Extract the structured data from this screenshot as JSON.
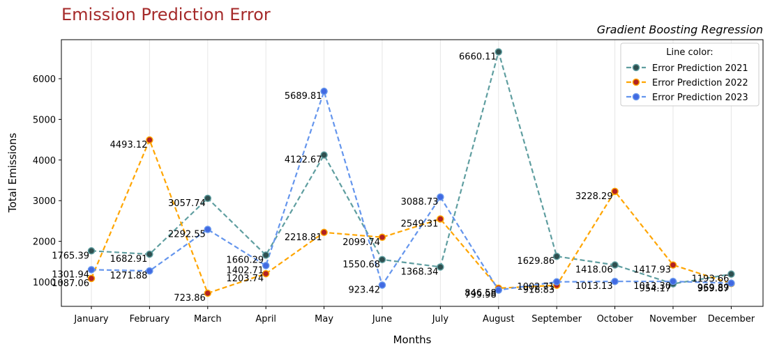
{
  "chart_data": {
    "type": "line",
    "title": "Emission Prediction Error",
    "subtitle": "Gradient Boosting Regression",
    "xlabel": "Months",
    "ylabel": "Total Emissions",
    "categories": [
      "January",
      "February",
      "March",
      "April",
      "May",
      "June",
      "July",
      "August",
      "September",
      "October",
      "November",
      "December"
    ],
    "yticks": [
      1000,
      2000,
      3000,
      4000,
      5000,
      6000
    ],
    "ylim": [
      400,
      6960
    ],
    "grid": "vertical",
    "legend": {
      "title": "Line color:",
      "placement": "top-right"
    },
    "series": [
      {
        "name": "Error Prediction 2021",
        "color": "#5f9ea0",
        "marker_color": "#2f4f4f",
        "values": [
          1765.39,
          1682.91,
          3057.74,
          1660.29,
          4122.67,
          1550.68,
          1368.34,
          6660.11,
          1629.86,
          1418.06,
          954.17,
          1193.66
        ]
      },
      {
        "name": "Error Prediction 2022",
        "color": "#ffa500",
        "marker_color": "#b22222",
        "values": [
          1087.06,
          4493.12,
          723.86,
          1203.74,
          2218.81,
          2099.74,
          2549.31,
          846.58,
          918.83,
          3228.29,
          1417.93,
          959.87
        ]
      },
      {
        "name": "Error Prediction 2023",
        "color": "#6495ed",
        "marker_color": "#4169e1",
        "values": [
          1301.94,
          1271.88,
          2292.55,
          1402.71,
          5689.81,
          923.42,
          3088.73,
          799.98,
          1002.71,
          1013.13,
          1013.3,
          969.89
        ]
      }
    ]
  }
}
